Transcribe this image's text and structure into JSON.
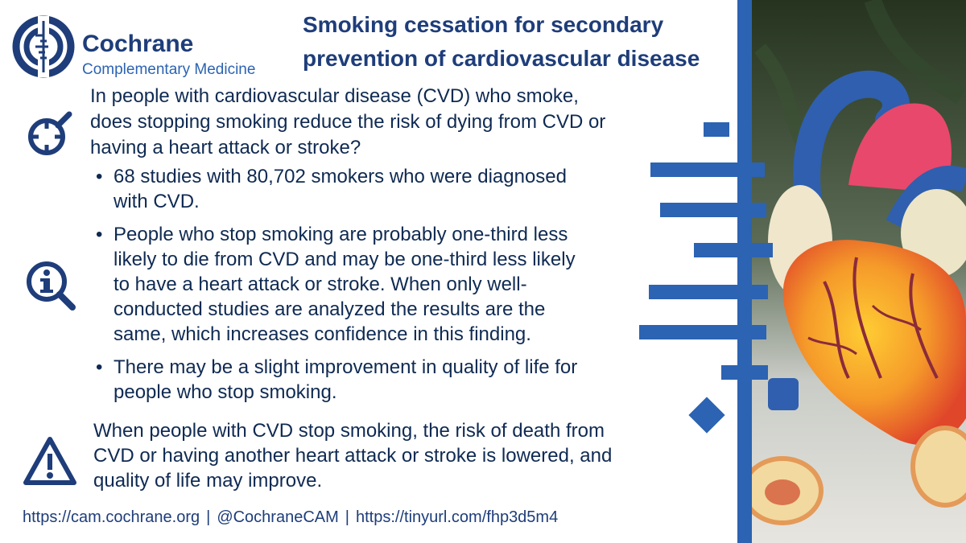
{
  "brand": {
    "name": "Cochrane",
    "subtitle": "Complementary Medicine",
    "color": "#1e3d7a",
    "accent": "#2c63b2"
  },
  "title": {
    "lines": [
      "Smoking cessation for secondary",
      "prevention of cardiovascular disease"
    ]
  },
  "question": {
    "icon": "target-search-icon",
    "lines": [
      "In people with cardiovascular disease (CVD) who smoke,",
      "does stopping smoking reduce the risk of dying from CVD or",
      "having a heart attack or stroke?"
    ]
  },
  "findings": {
    "icon": "info-magnifier-icon",
    "bullets": [
      {
        "lines": [
          "68 studies with 80,702 smokers who were diagnosed",
          "with CVD."
        ]
      },
      {
        "lines": [
          "People who stop smoking are probably one-third less",
          "likely to die from CVD and may be one-third less likely",
          "to have a heart attack or stroke. When only well-",
          "conducted studies are analyzed the results are the",
          "same, which increases confidence in this finding."
        ]
      },
      {
        "lines": [
          "There may be a slight improvement in quality of life for",
          "people who stop smoking."
        ]
      }
    ]
  },
  "conclusion": {
    "icon": "warning-triangle-icon",
    "lines": [
      "When people with CVD stop smoking, the risk of death from",
      "CVD or having another heart attack or stroke is lowered, and",
      "quality of life may improve."
    ]
  },
  "footer": {
    "website": "https://cam.cochrane.org",
    "handle": "@CochraneCAM",
    "link": "https://tinyurl.com/fhp3d5m4",
    "separator": "|"
  },
  "photo": {
    "subject": "heart-model-image"
  }
}
